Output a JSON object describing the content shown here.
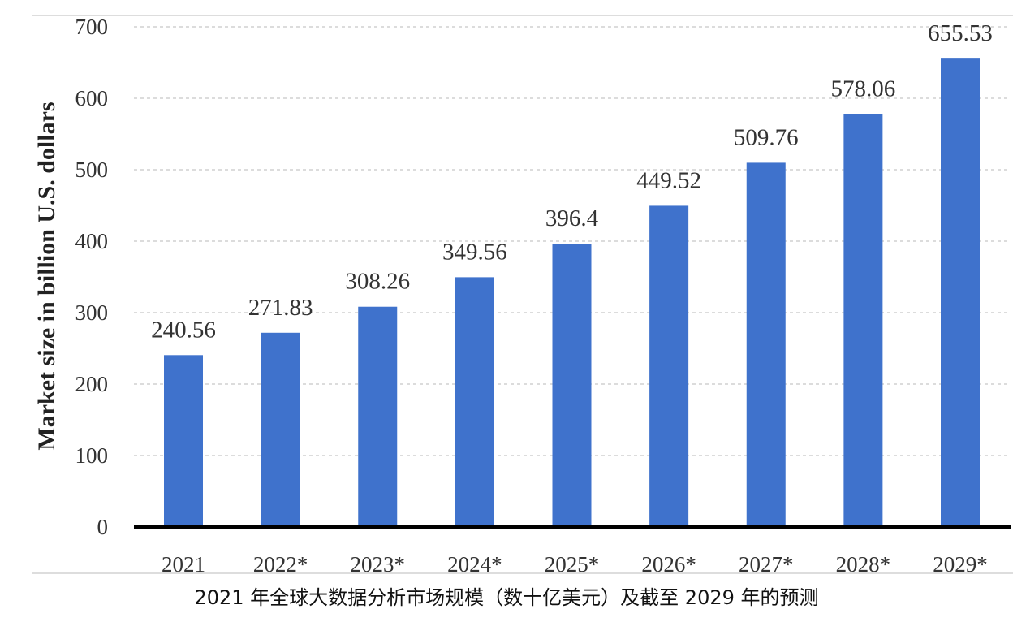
{
  "chart_data": {
    "type": "bar",
    "categories": [
      "2021",
      "2022*",
      "2023*",
      "2024*",
      "2025*",
      "2026*",
      "2027*",
      "2028*",
      "2029*"
    ],
    "values": [
      240.56,
      271.83,
      308.26,
      349.56,
      396.4,
      449.52,
      509.76,
      578.06,
      655.53
    ],
    "data_labels": [
      "240.56",
      "271.83",
      "308.26",
      "349.56",
      "396.4",
      "449.52",
      "509.76",
      "578.06",
      "655.53"
    ],
    "ylabel": "Market size in billion U.S. dollars",
    "xlabel": "",
    "ylim": [
      0,
      700
    ],
    "yticks": [
      "0",
      "100",
      "200",
      "300",
      "400",
      "500",
      "600",
      "700"
    ],
    "grid": "horizontal dashed",
    "bar_color": "#3f72cc"
  },
  "caption": "2021 年全球大数据分析市场规模（数十亿美元）及截至 2029 年的预测"
}
